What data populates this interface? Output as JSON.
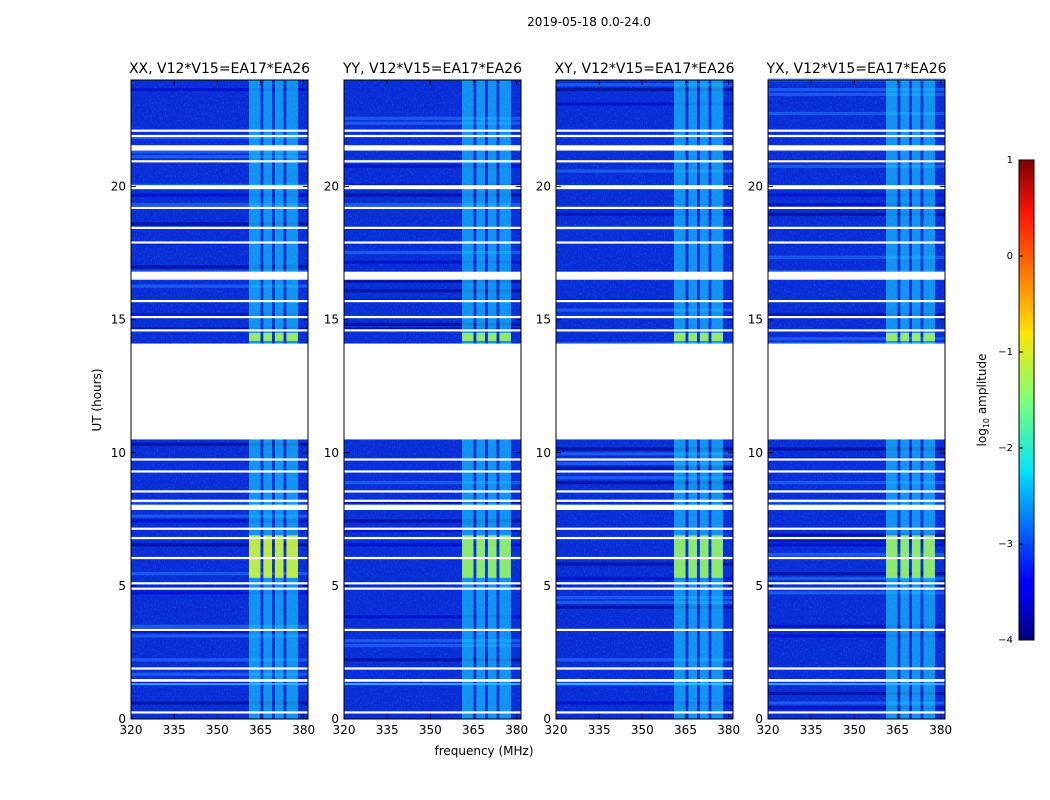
{
  "chart_data": {
    "type": "heatmap",
    "suptitle": "2019-05-18 0.0-24.0",
    "xlabel": "frequency (MHz)",
    "ylabel": "UT (hours)",
    "xlim": [
      320,
      381.5
    ],
    "ylim": [
      0,
      24
    ],
    "xticks": [
      320,
      335,
      350,
      365,
      380
    ],
    "yticks": [
      0,
      5,
      10,
      15,
      20
    ],
    "panels": [
      {
        "title": "XX, V12*V15=EA17*EA26",
        "polarization": "XX"
      },
      {
        "title": "YY, V12*V15=EA17*EA26",
        "polarization": "YY"
      },
      {
        "title": "XY, V12*V15=EA17*EA26",
        "polarization": "XY"
      },
      {
        "title": "YX, V12*V15=EA17*EA26",
        "polarization": "YX"
      }
    ],
    "data_gaps_hours": [
      [
        10.5,
        14.1
      ]
    ],
    "flagged_rows_hours": [
      0.25,
      1.45,
      1.9,
      3.35,
      4.9,
      5.1,
      6.05,
      6.8,
      7.15,
      7.95,
      8.2,
      8.55,
      9.3,
      9.75,
      14.6,
      15.1,
      15.7,
      16.55,
      16.75,
      17.9,
      18.45,
      19.2,
      20.0,
      20.95,
      21.45,
      21.9,
      22.1
    ],
    "rfi_band_mhz": [
      361,
      379
    ],
    "rfi_subbands_mhz": [
      [
        361,
        365
      ],
      [
        366,
        369
      ],
      [
        370,
        373
      ],
      [
        374,
        378
      ]
    ],
    "colorbar": {
      "label": "log10 amplitude",
      "label_main": "log",
      "label_sub": "10",
      "label_rest": " amplitude",
      "range": [
        -4,
        1
      ],
      "ticks": [
        1,
        0,
        -1,
        -2,
        -3,
        -4
      ],
      "tick_labels": [
        "1",
        "0",
        "−1",
        "−2",
        "−3",
        "−4"
      ],
      "colormap": "jet"
    }
  }
}
